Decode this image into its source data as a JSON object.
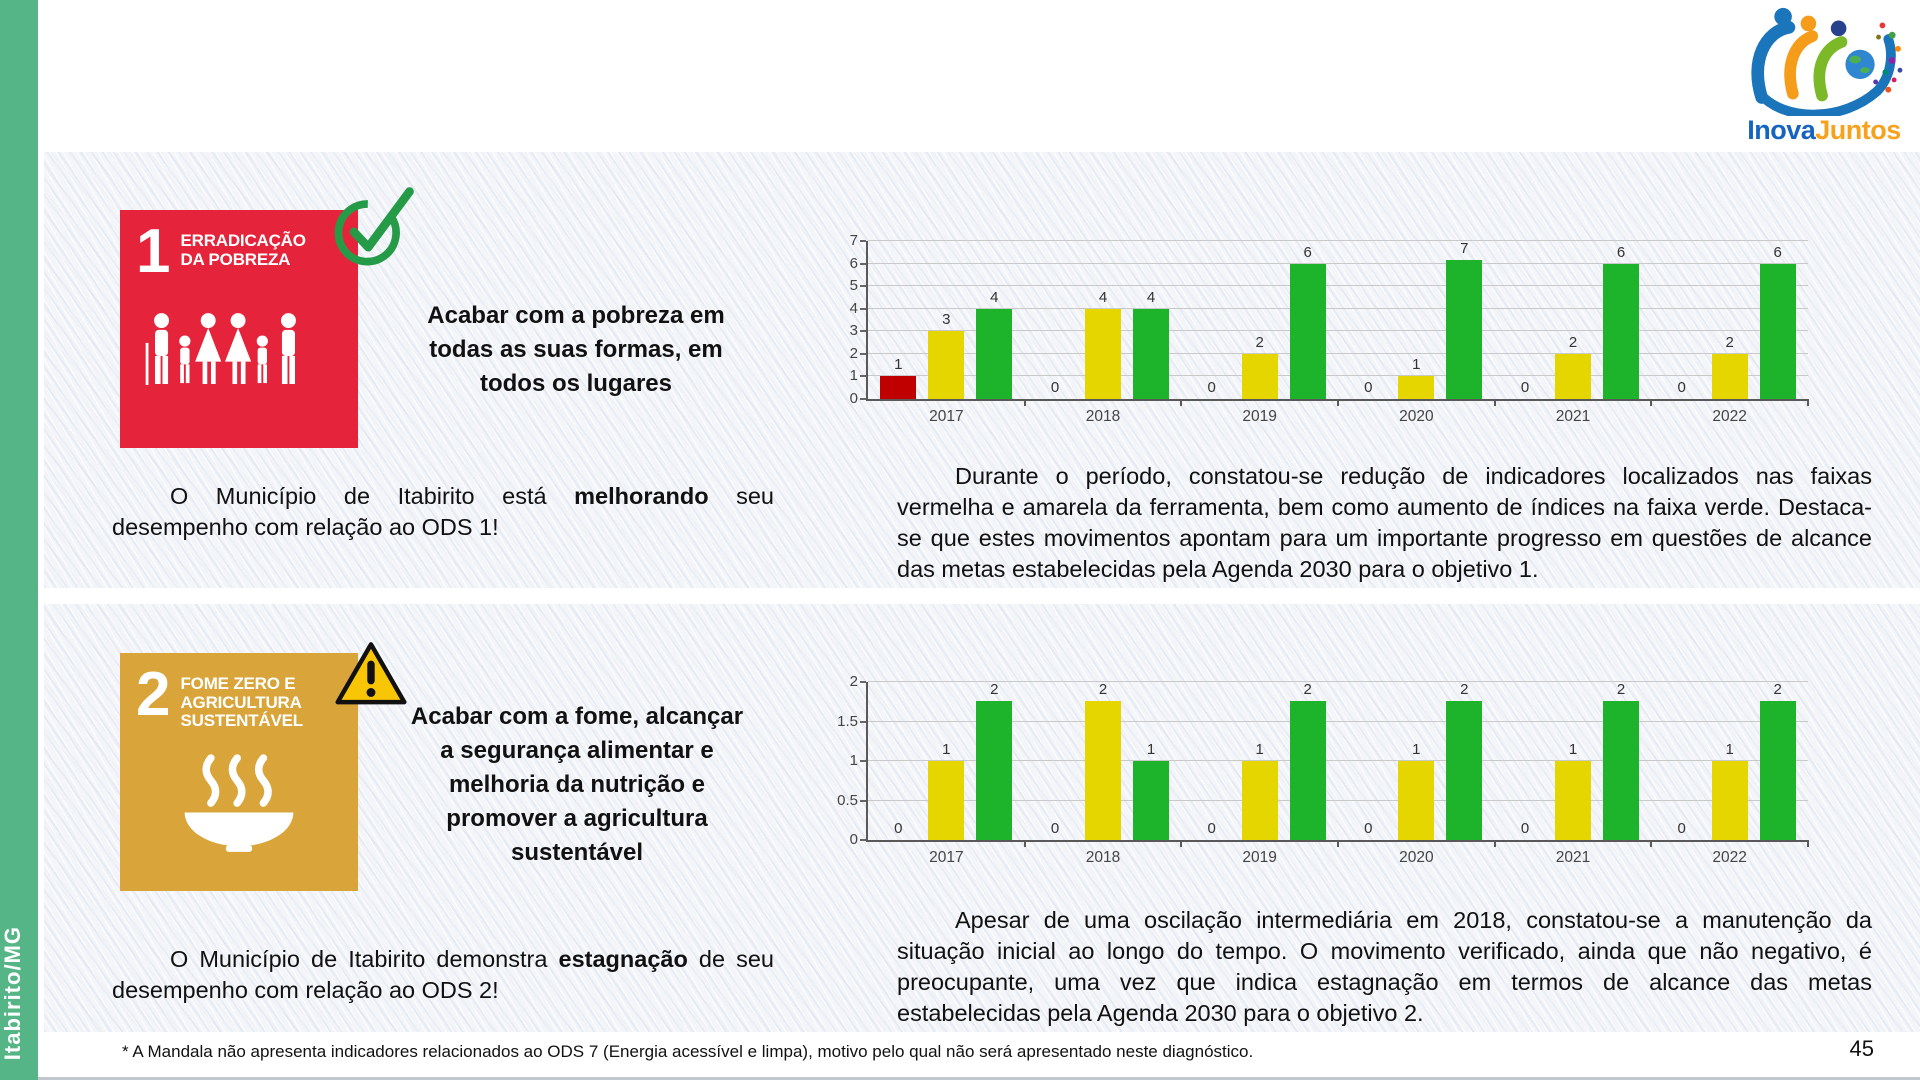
{
  "logo": {
    "inova": "Inova",
    "juntos": "Juntos"
  },
  "sidebar": {
    "label": "Itabirito/MG",
    "color": "#55b586"
  },
  "ods1": {
    "badge": {
      "number": "1",
      "title_line1": "ERRADICAÇÃO",
      "title_line2": "DA POBREZA",
      "color": "#e5243b"
    },
    "status_icon": "check-icon",
    "headline_lines": [
      "Acabar com a pobreza em",
      "todas as suas formas, em",
      "todos os lugares"
    ],
    "summary": {
      "pre": "O Município de Itabirito está ",
      "bold": "melhorando",
      "post": " seu desempenho com relação ao ODS 1!"
    },
    "analysis": "Durante o período, constatou-se redução de indicadores localizados nas faixas vermelha e amarela da ferramenta, bem como aumento de índices na faixa verde. Destaca-se que estes movimentos apontam para um importante progresso em questões de alcance das metas estabelecidas pela Agenda 2030 para o objetivo 1."
  },
  "ods2": {
    "badge": {
      "number": "2",
      "title_line1": "FOME ZERO E",
      "title_line2": "AGRICULTURA",
      "title_line3": "SUSTENTÁVEL",
      "color": "#d9a53a"
    },
    "status_icon": "warning-icon",
    "headline_lines": [
      "Acabar com a fome, alcançar",
      "a segurança alimentar e",
      "melhoria da nutrição e",
      "promover a agricultura",
      "sustentável"
    ],
    "summary": {
      "pre": "O Município de Itabirito demonstra ",
      "bold": "estagnação",
      "post": " de seu desempenho com relação ao ODS 2!"
    },
    "analysis": "Apesar de uma oscilação intermediária em 2018, constatou-se a manutenção da situação inicial ao longo do tempo. O movimento verificado, ainda que não negativo, é preocupante, uma vez que indica estagnação em termos de alcance das metas estabelecidas pela Agenda 2030 para o objetivo 2."
  },
  "footer": {
    "footnote": "* A Mandala não apresenta indicadores relacionados ao ODS 7 (Energia acessível e limpa), motivo pelo qual não será apresentado neste diagnóstico.",
    "page_number": "45"
  },
  "chart_data": [
    {
      "type": "bar",
      "title": "",
      "xlabel": "",
      "ylabel": "",
      "categories": [
        "2017",
        "2018",
        "2019",
        "2020",
        "2021",
        "2022"
      ],
      "series": [
        {
          "name": "faixa-vermelha",
          "color": "#c00000",
          "values": [
            1,
            0,
            0,
            0,
            0,
            0
          ]
        },
        {
          "name": "faixa-amarela",
          "color": "#e6d600",
          "values": [
            3,
            4,
            2,
            1,
            2,
            2
          ]
        },
        {
          "name": "faixa-verde",
          "color": "#1db32a",
          "values": [
            4,
            4,
            6,
            7,
            6,
            6
          ]
        }
      ],
      "ylim": [
        0,
        7
      ],
      "yticks": [
        0,
        1,
        2,
        3,
        4,
        5,
        6,
        7
      ],
      "grid": true,
      "legend": "none",
      "data_labels": true
    },
    {
      "type": "bar",
      "title": "",
      "xlabel": "",
      "ylabel": "",
      "categories": [
        "2017",
        "2018",
        "2019",
        "2020",
        "2021",
        "2022"
      ],
      "series": [
        {
          "name": "faixa-vermelha",
          "color": "#c00000",
          "values": [
            0,
            0,
            0,
            0,
            0,
            0
          ]
        },
        {
          "name": "faixa-amarela",
          "color": "#e6d600",
          "values": [
            1,
            2,
            1,
            1,
            1,
            1
          ]
        },
        {
          "name": "faixa-verde",
          "color": "#1db32a",
          "values": [
            2,
            1,
            2,
            2,
            2,
            2
          ]
        }
      ],
      "ylim": [
        0,
        2
      ],
      "yticks": [
        0,
        0.5,
        1,
        1.5,
        2
      ],
      "grid": true,
      "legend": "none",
      "data_labels": true
    }
  ]
}
